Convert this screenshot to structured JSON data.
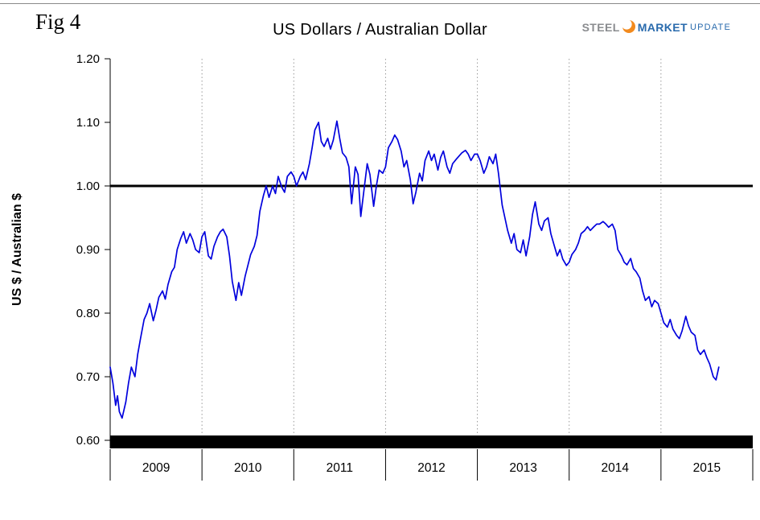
{
  "header": {
    "fig_label": "Fig 4",
    "title": "US Dollars / Australian Dollar",
    "logo": {
      "steel": "STEEL",
      "market": "MARKET",
      "update": "UPDATE",
      "accent_color": "#f28a1e",
      "steel_color": "#8a8c8f",
      "blue_color": "#2a6bad"
    }
  },
  "chart_data": {
    "type": "line",
    "title": "US Dollars / Australian Dollar",
    "xlabel": "",
    "ylabel": "US $ / Australian $",
    "ylim": [
      0.6,
      1.2
    ],
    "yticks": [
      0.6,
      0.7,
      0.8,
      0.9,
      1.0,
      1.1,
      1.2
    ],
    "xlim": [
      2009,
      2016
    ],
    "x_tick_labels": [
      "2009",
      "2010",
      "2011",
      "2012",
      "2013",
      "2014",
      "2015"
    ],
    "grid": "vertical-dotted",
    "legend_position": "none",
    "reference_line_y": 1.0,
    "line_color": "#0000dd",
    "series": [
      {
        "name": "US $ per Australian $",
        "points": [
          [
            2009.0,
            0.715
          ],
          [
            2009.03,
            0.69
          ],
          [
            2009.06,
            0.655
          ],
          [
            2009.08,
            0.67
          ],
          [
            2009.1,
            0.645
          ],
          [
            2009.13,
            0.635
          ],
          [
            2009.17,
            0.66
          ],
          [
            2009.2,
            0.69
          ],
          [
            2009.23,
            0.715
          ],
          [
            2009.27,
            0.7
          ],
          [
            2009.3,
            0.735
          ],
          [
            2009.33,
            0.76
          ],
          [
            2009.37,
            0.79
          ],
          [
            2009.4,
            0.8
          ],
          [
            2009.43,
            0.815
          ],
          [
            2009.47,
            0.788
          ],
          [
            2009.5,
            0.805
          ],
          [
            2009.53,
            0.825
          ],
          [
            2009.57,
            0.835
          ],
          [
            2009.6,
            0.822
          ],
          [
            2009.63,
            0.845
          ],
          [
            2009.67,
            0.865
          ],
          [
            2009.7,
            0.872
          ],
          [
            2009.73,
            0.9
          ],
          [
            2009.77,
            0.918
          ],
          [
            2009.8,
            0.928
          ],
          [
            2009.83,
            0.91
          ],
          [
            2009.87,
            0.925
          ],
          [
            2009.9,
            0.915
          ],
          [
            2009.93,
            0.9
          ],
          [
            2009.97,
            0.895
          ],
          [
            2010.0,
            0.92
          ],
          [
            2010.03,
            0.928
          ],
          [
            2010.07,
            0.89
          ],
          [
            2010.1,
            0.885
          ],
          [
            2010.13,
            0.905
          ],
          [
            2010.17,
            0.92
          ],
          [
            2010.2,
            0.928
          ],
          [
            2010.23,
            0.932
          ],
          [
            2010.27,
            0.92
          ],
          [
            2010.3,
            0.89
          ],
          [
            2010.33,
            0.85
          ],
          [
            2010.37,
            0.82
          ],
          [
            2010.4,
            0.848
          ],
          [
            2010.43,
            0.828
          ],
          [
            2010.47,
            0.858
          ],
          [
            2010.5,
            0.875
          ],
          [
            2010.53,
            0.892
          ],
          [
            2010.57,
            0.905
          ],
          [
            2010.6,
            0.922
          ],
          [
            2010.63,
            0.96
          ],
          [
            2010.67,
            0.985
          ],
          [
            2010.7,
            1.0
          ],
          [
            2010.73,
            0.982
          ],
          [
            2010.77,
            1.0
          ],
          [
            2010.8,
            0.988
          ],
          [
            2010.83,
            1.015
          ],
          [
            2010.87,
            0.998
          ],
          [
            2010.9,
            0.99
          ],
          [
            2010.93,
            1.015
          ],
          [
            2010.97,
            1.022
          ],
          [
            2011.0,
            1.015
          ],
          [
            2011.03,
            1.0
          ],
          [
            2011.07,
            1.015
          ],
          [
            2011.1,
            1.022
          ],
          [
            2011.13,
            1.01
          ],
          [
            2011.17,
            1.035
          ],
          [
            2011.2,
            1.06
          ],
          [
            2011.23,
            1.088
          ],
          [
            2011.27,
            1.1
          ],
          [
            2011.3,
            1.07
          ],
          [
            2011.33,
            1.062
          ],
          [
            2011.37,
            1.075
          ],
          [
            2011.4,
            1.058
          ],
          [
            2011.43,
            1.072
          ],
          [
            2011.47,
            1.102
          ],
          [
            2011.5,
            1.075
          ],
          [
            2011.53,
            1.052
          ],
          [
            2011.57,
            1.045
          ],
          [
            2011.6,
            1.03
          ],
          [
            2011.63,
            0.972
          ],
          [
            2011.67,
            1.03
          ],
          [
            2011.7,
            1.018
          ],
          [
            2011.73,
            0.952
          ],
          [
            2011.77,
            1.0
          ],
          [
            2011.8,
            1.035
          ],
          [
            2011.83,
            1.018
          ],
          [
            2011.87,
            0.968
          ],
          [
            2011.9,
            1.0
          ],
          [
            2011.93,
            1.025
          ],
          [
            2011.97,
            1.02
          ],
          [
            2012.0,
            1.03
          ],
          [
            2012.03,
            1.06
          ],
          [
            2012.07,
            1.07
          ],
          [
            2012.1,
            1.08
          ],
          [
            2012.13,
            1.073
          ],
          [
            2012.17,
            1.055
          ],
          [
            2012.2,
            1.03
          ],
          [
            2012.23,
            1.04
          ],
          [
            2012.27,
            1.01
          ],
          [
            2012.3,
            0.972
          ],
          [
            2012.33,
            0.99
          ],
          [
            2012.37,
            1.02
          ],
          [
            2012.4,
            1.008
          ],
          [
            2012.43,
            1.04
          ],
          [
            2012.47,
            1.055
          ],
          [
            2012.5,
            1.04
          ],
          [
            2012.53,
            1.05
          ],
          [
            2012.57,
            1.025
          ],
          [
            2012.6,
            1.045
          ],
          [
            2012.63,
            1.055
          ],
          [
            2012.67,
            1.03
          ],
          [
            2012.7,
            1.02
          ],
          [
            2012.73,
            1.035
          ],
          [
            2012.77,
            1.042
          ],
          [
            2012.8,
            1.047
          ],
          [
            2012.83,
            1.052
          ],
          [
            2012.87,
            1.056
          ],
          [
            2012.9,
            1.05
          ],
          [
            2012.93,
            1.04
          ],
          [
            2012.97,
            1.05
          ],
          [
            2013.0,
            1.05
          ],
          [
            2013.03,
            1.04
          ],
          [
            2013.07,
            1.02
          ],
          [
            2013.1,
            1.03
          ],
          [
            2013.13,
            1.046
          ],
          [
            2013.17,
            1.035
          ],
          [
            2013.2,
            1.05
          ],
          [
            2013.23,
            1.02
          ],
          [
            2013.27,
            0.97
          ],
          [
            2013.3,
            0.95
          ],
          [
            2013.33,
            0.93
          ],
          [
            2013.37,
            0.91
          ],
          [
            2013.4,
            0.925
          ],
          [
            2013.43,
            0.9
          ],
          [
            2013.47,
            0.895
          ],
          [
            2013.5,
            0.915
          ],
          [
            2013.53,
            0.89
          ],
          [
            2013.57,
            0.92
          ],
          [
            2013.6,
            0.955
          ],
          [
            2013.63,
            0.975
          ],
          [
            2013.67,
            0.94
          ],
          [
            2013.7,
            0.93
          ],
          [
            2013.73,
            0.945
          ],
          [
            2013.77,
            0.95
          ],
          [
            2013.8,
            0.925
          ],
          [
            2013.83,
            0.91
          ],
          [
            2013.87,
            0.89
          ],
          [
            2013.9,
            0.9
          ],
          [
            2013.93,
            0.885
          ],
          [
            2013.97,
            0.875
          ],
          [
            2014.0,
            0.88
          ],
          [
            2014.03,
            0.892
          ],
          [
            2014.07,
            0.9
          ],
          [
            2014.1,
            0.91
          ],
          [
            2014.13,
            0.925
          ],
          [
            2014.17,
            0.93
          ],
          [
            2014.2,
            0.936
          ],
          [
            2014.23,
            0.93
          ],
          [
            2014.27,
            0.936
          ],
          [
            2014.3,
            0.94
          ],
          [
            2014.33,
            0.94
          ],
          [
            2014.37,
            0.944
          ],
          [
            2014.4,
            0.94
          ],
          [
            2014.43,
            0.935
          ],
          [
            2014.47,
            0.94
          ],
          [
            2014.5,
            0.93
          ],
          [
            2014.53,
            0.9
          ],
          [
            2014.57,
            0.89
          ],
          [
            2014.6,
            0.88
          ],
          [
            2014.63,
            0.876
          ],
          [
            2014.67,
            0.886
          ],
          [
            2014.7,
            0.87
          ],
          [
            2014.73,
            0.865
          ],
          [
            2014.77,
            0.855
          ],
          [
            2014.8,
            0.835
          ],
          [
            2014.83,
            0.82
          ],
          [
            2014.87,
            0.826
          ],
          [
            2014.9,
            0.81
          ],
          [
            2014.93,
            0.82
          ],
          [
            2014.97,
            0.815
          ],
          [
            2015.0,
            0.8
          ],
          [
            2015.03,
            0.785
          ],
          [
            2015.07,
            0.778
          ],
          [
            2015.1,
            0.79
          ],
          [
            2015.13,
            0.775
          ],
          [
            2015.17,
            0.765
          ],
          [
            2015.2,
            0.76
          ],
          [
            2015.23,
            0.772
          ],
          [
            2015.27,
            0.795
          ],
          [
            2015.3,
            0.78
          ],
          [
            2015.33,
            0.77
          ],
          [
            2015.37,
            0.765
          ],
          [
            2015.4,
            0.742
          ],
          [
            2015.43,
            0.735
          ],
          [
            2015.47,
            0.742
          ],
          [
            2015.5,
            0.73
          ],
          [
            2015.53,
            0.72
          ],
          [
            2015.57,
            0.7
          ],
          [
            2015.6,
            0.695
          ],
          [
            2015.63,
            0.715
          ]
        ]
      }
    ]
  }
}
